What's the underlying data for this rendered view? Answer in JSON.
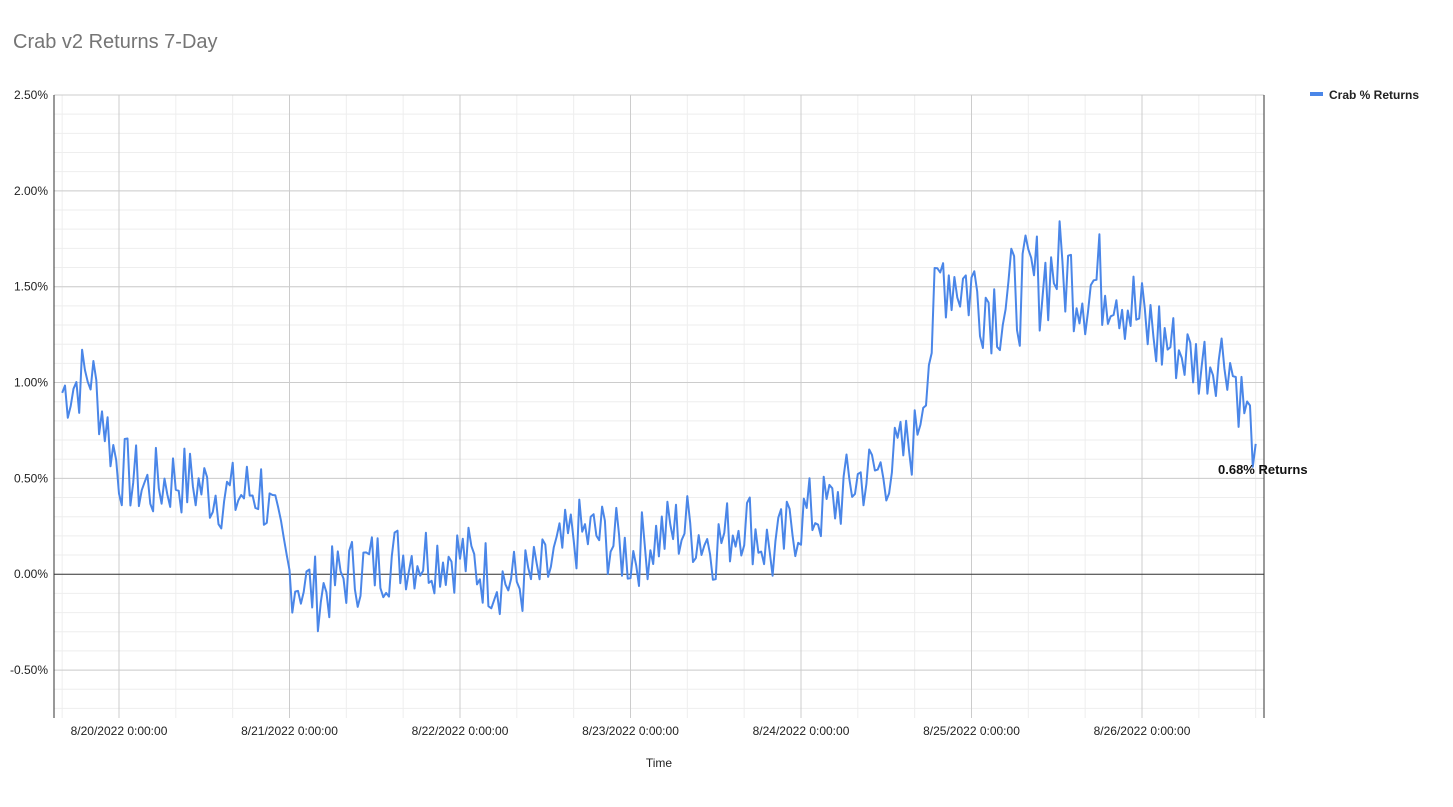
{
  "chart_data": {
    "type": "line",
    "title": "Crab v2 Returns 7-Day",
    "xlabel": "Time",
    "ylabel": "",
    "ylim": [
      -0.75,
      2.5
    ],
    "y_ticks": [
      "2.50%",
      "2.00%",
      "1.50%",
      "1.00%",
      "0.50%",
      "0.00%",
      "-0.50%"
    ],
    "y_tick_values": [
      2.5,
      2.0,
      1.5,
      1.0,
      0.5,
      0.0,
      -0.5
    ],
    "x_ticks": [
      "8/20/2022 0:00:00",
      "8/21/2022 0:00:00",
      "8/22/2022 0:00:00",
      "8/23/2022 0:00:00",
      "8/24/2022 0:00:00",
      "8/25/2022 0:00:00",
      "8/26/2022 0:00:00"
    ],
    "x_range_days": [
      "8/19/2022 16:00:00",
      "8/26/2022 16:00:00"
    ],
    "grid": true,
    "legend_position": "top-right",
    "series": [
      {
        "name": "Crab % Returns",
        "color": "#4a86e8",
        "x": [
          "8/19 16:00",
          "8/19 20:00",
          "8/20 0:00",
          "8/20 4:00",
          "8/20 8:00",
          "8/20 12:00",
          "8/20 16:00",
          "8/20 20:00",
          "8/21 0:00",
          "8/21 4:00",
          "8/21 8:00",
          "8/21 12:00",
          "8/21 16:00",
          "8/21 20:00",
          "8/22 0:00",
          "8/22 4:00",
          "8/22 8:00",
          "8/22 12:00",
          "8/22 16:00",
          "8/22 20:00",
          "8/23 0:00",
          "8/23 4:00",
          "8/23 8:00",
          "8/23 12:00",
          "8/23 16:00",
          "8/23 20:00",
          "8/24 0:00",
          "8/24 4:00",
          "8/24 8:00",
          "8/24 12:00",
          "8/24 16:00",
          "8/24 20:00",
          "8/25 0:00",
          "8/25 4:00",
          "8/25 8:00",
          "8/25 12:00",
          "8/25 16:00",
          "8/25 20:00",
          "8/26 0:00",
          "8/26 4:00",
          "8/26 8:00",
          "8/26 12:00",
          "8/26 16:00"
        ],
        "values": [
          0.95,
          1.05,
          0.55,
          0.45,
          0.5,
          0.45,
          0.4,
          0.45,
          0.0,
          -0.1,
          0.0,
          0.05,
          0.1,
          0.1,
          0.1,
          0.0,
          -0.05,
          0.0,
          0.2,
          0.2,
          0.1,
          0.2,
          0.25,
          0.15,
          0.3,
          0.1,
          0.3,
          0.35,
          0.5,
          0.55,
          0.7,
          1.6,
          1.5,
          1.4,
          1.5,
          1.6,
          1.5,
          1.55,
          1.3,
          1.2,
          1.1,
          1.15,
          0.68
        ]
      }
    ],
    "annotations": [
      {
        "text": "0.68% Returns"
      }
    ]
  }
}
